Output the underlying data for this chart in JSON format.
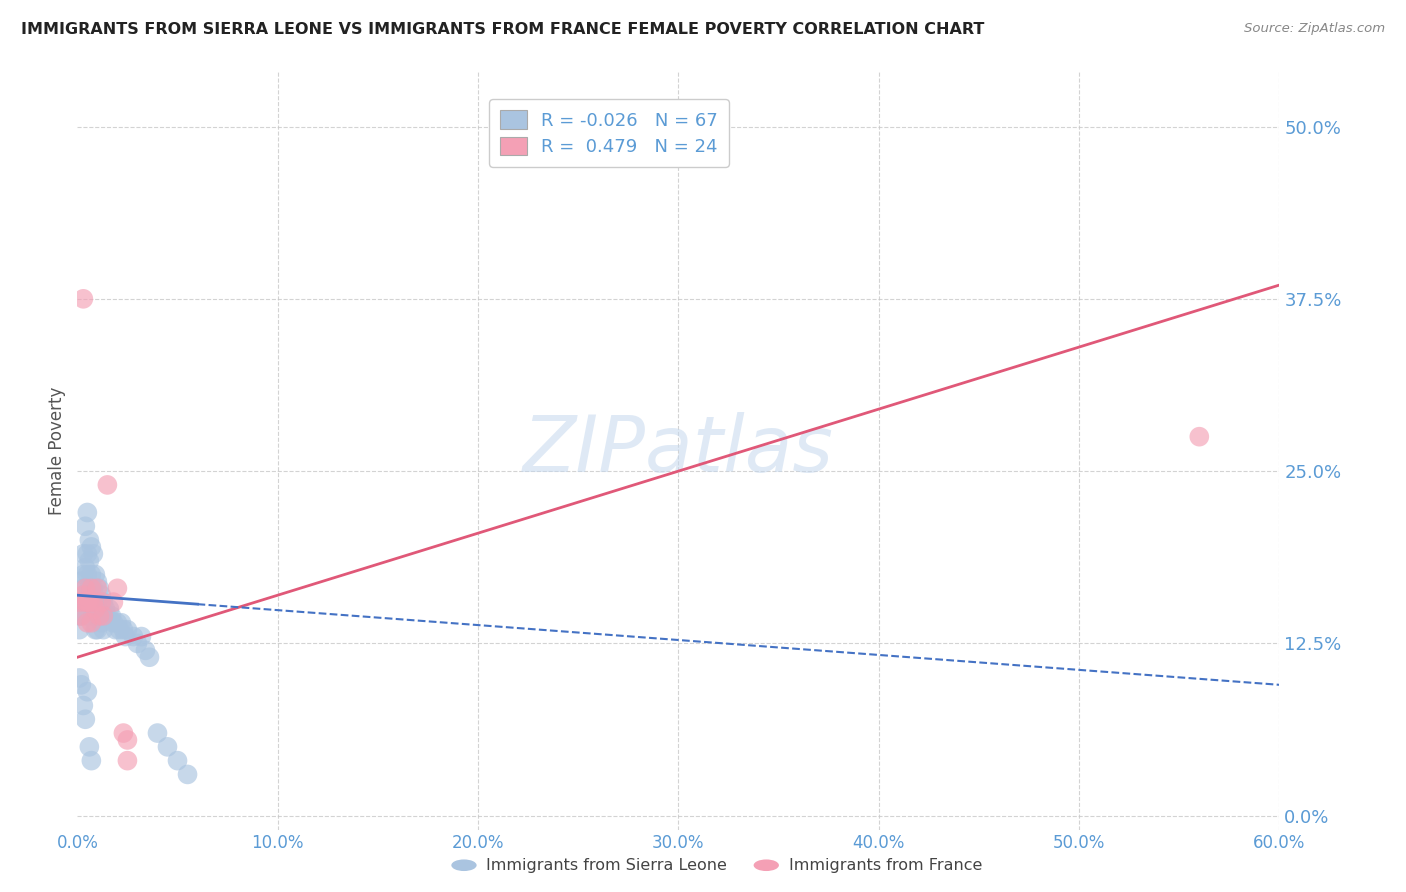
{
  "title": "IMMIGRANTS FROM SIERRA LEONE VS IMMIGRANTS FROM FRANCE FEMALE POVERTY CORRELATION CHART",
  "source": "Source: ZipAtlas.com",
  "ylabel": "Female Poverty",
  "xlim": [
    0.0,
    0.6
  ],
  "ylim": [
    -0.01,
    0.54
  ],
  "yticks": [
    0.0,
    0.125,
    0.25,
    0.375,
    0.5
  ],
  "ytick_labels": [
    "0.0%",
    "12.5%",
    "25.0%",
    "37.5%",
    "50.0%"
  ],
  "xticks": [
    0.0,
    0.1,
    0.2,
    0.3,
    0.4,
    0.5,
    0.6
  ],
  "xtick_labels": [
    "0.0%",
    "10.0%",
    "20.0%",
    "30.0%",
    "40.0%",
    "50.0%",
    "60.0%"
  ],
  "sierra_leone_color": "#aac4e0",
  "france_color": "#f4a0b5",
  "trend_sierra_color": "#4472c4",
  "trend_france_color": "#e05878",
  "legend_R_sierra": "-0.026",
  "legend_N_sierra": "67",
  "legend_R_france": "0.479",
  "legend_N_france": "24",
  "watermark": "ZIPatlas",
  "background_color": "#ffffff",
  "grid_color": "#c8c8c8",
  "axis_label_color": "#5b9bd5",
  "sierra_leone_x": [
    0.001,
    0.001,
    0.001,
    0.001,
    0.002,
    0.002,
    0.002,
    0.002,
    0.003,
    0.003,
    0.003,
    0.003,
    0.003,
    0.004,
    0.004,
    0.004,
    0.004,
    0.005,
    0.005,
    0.005,
    0.005,
    0.005,
    0.005,
    0.006,
    0.006,
    0.006,
    0.006,
    0.007,
    0.007,
    0.007,
    0.007,
    0.008,
    0.008,
    0.008,
    0.009,
    0.009,
    0.009,
    0.01,
    0.01,
    0.01,
    0.011,
    0.011,
    0.012,
    0.012,
    0.013,
    0.013,
    0.014,
    0.015,
    0.016,
    0.017,
    0.018,
    0.019,
    0.02,
    0.021,
    0.022,
    0.023,
    0.024,
    0.025,
    0.028,
    0.03,
    0.032,
    0.034,
    0.036,
    0.04,
    0.045,
    0.05,
    0.055
  ],
  "sierra_leone_y": [
    0.155,
    0.145,
    0.135,
    0.1,
    0.17,
    0.155,
    0.145,
    0.095,
    0.19,
    0.175,
    0.165,
    0.155,
    0.08,
    0.21,
    0.18,
    0.155,
    0.07,
    0.22,
    0.19,
    0.175,
    0.16,
    0.145,
    0.09,
    0.2,
    0.185,
    0.165,
    0.05,
    0.195,
    0.175,
    0.155,
    0.04,
    0.19,
    0.165,
    0.145,
    0.175,
    0.155,
    0.135,
    0.17,
    0.155,
    0.135,
    0.165,
    0.145,
    0.16,
    0.14,
    0.155,
    0.135,
    0.15,
    0.145,
    0.15,
    0.145,
    0.14,
    0.135,
    0.14,
    0.135,
    0.14,
    0.135,
    0.13,
    0.135,
    0.13,
    0.125,
    0.13,
    0.12,
    0.115,
    0.06,
    0.05,
    0.04,
    0.03
  ],
  "france_x": [
    0.001,
    0.002,
    0.003,
    0.003,
    0.004,
    0.004,
    0.005,
    0.005,
    0.006,
    0.007,
    0.007,
    0.008,
    0.009,
    0.01,
    0.011,
    0.012,
    0.013,
    0.015,
    0.018,
    0.02,
    0.023,
    0.025,
    0.025,
    0.56
  ],
  "france_y": [
    0.155,
    0.145,
    0.375,
    0.16,
    0.165,
    0.155,
    0.155,
    0.14,
    0.155,
    0.165,
    0.14,
    0.155,
    0.15,
    0.165,
    0.145,
    0.155,
    0.145,
    0.24,
    0.155,
    0.165,
    0.06,
    0.055,
    0.04,
    0.275
  ],
  "sierra_trend_x": [
    0.0,
    0.6
  ],
  "sierra_trend_y": [
    0.16,
    0.095
  ],
  "france_trend_x": [
    0.0,
    0.6
  ],
  "france_trend_y": [
    0.115,
    0.385
  ]
}
